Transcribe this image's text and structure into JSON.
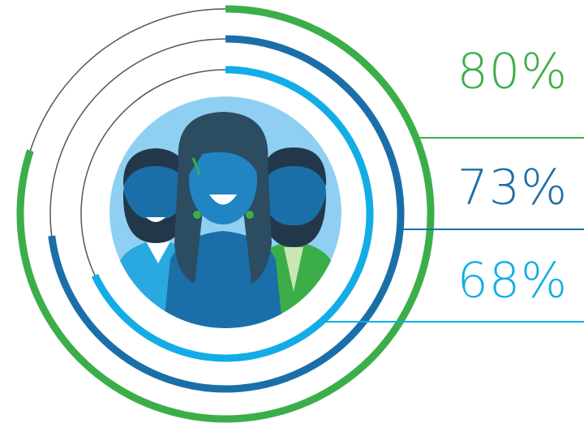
{
  "chart_data": {
    "type": "radial_bar",
    "series": [
      {
        "color": "#3cae49",
        "values": [
          80
        ],
        "value_labels": [
          "80%"
        ]
      },
      {
        "color": "#1b6fa8",
        "values": [
          73
        ],
        "value_labels": [
          "73%"
        ]
      },
      {
        "color": "#12ade6",
        "values": [
          68
        ],
        "value_labels": [
          "68%"
        ]
      }
    ],
    "ylim": [
      0,
      100
    ]
  }
}
